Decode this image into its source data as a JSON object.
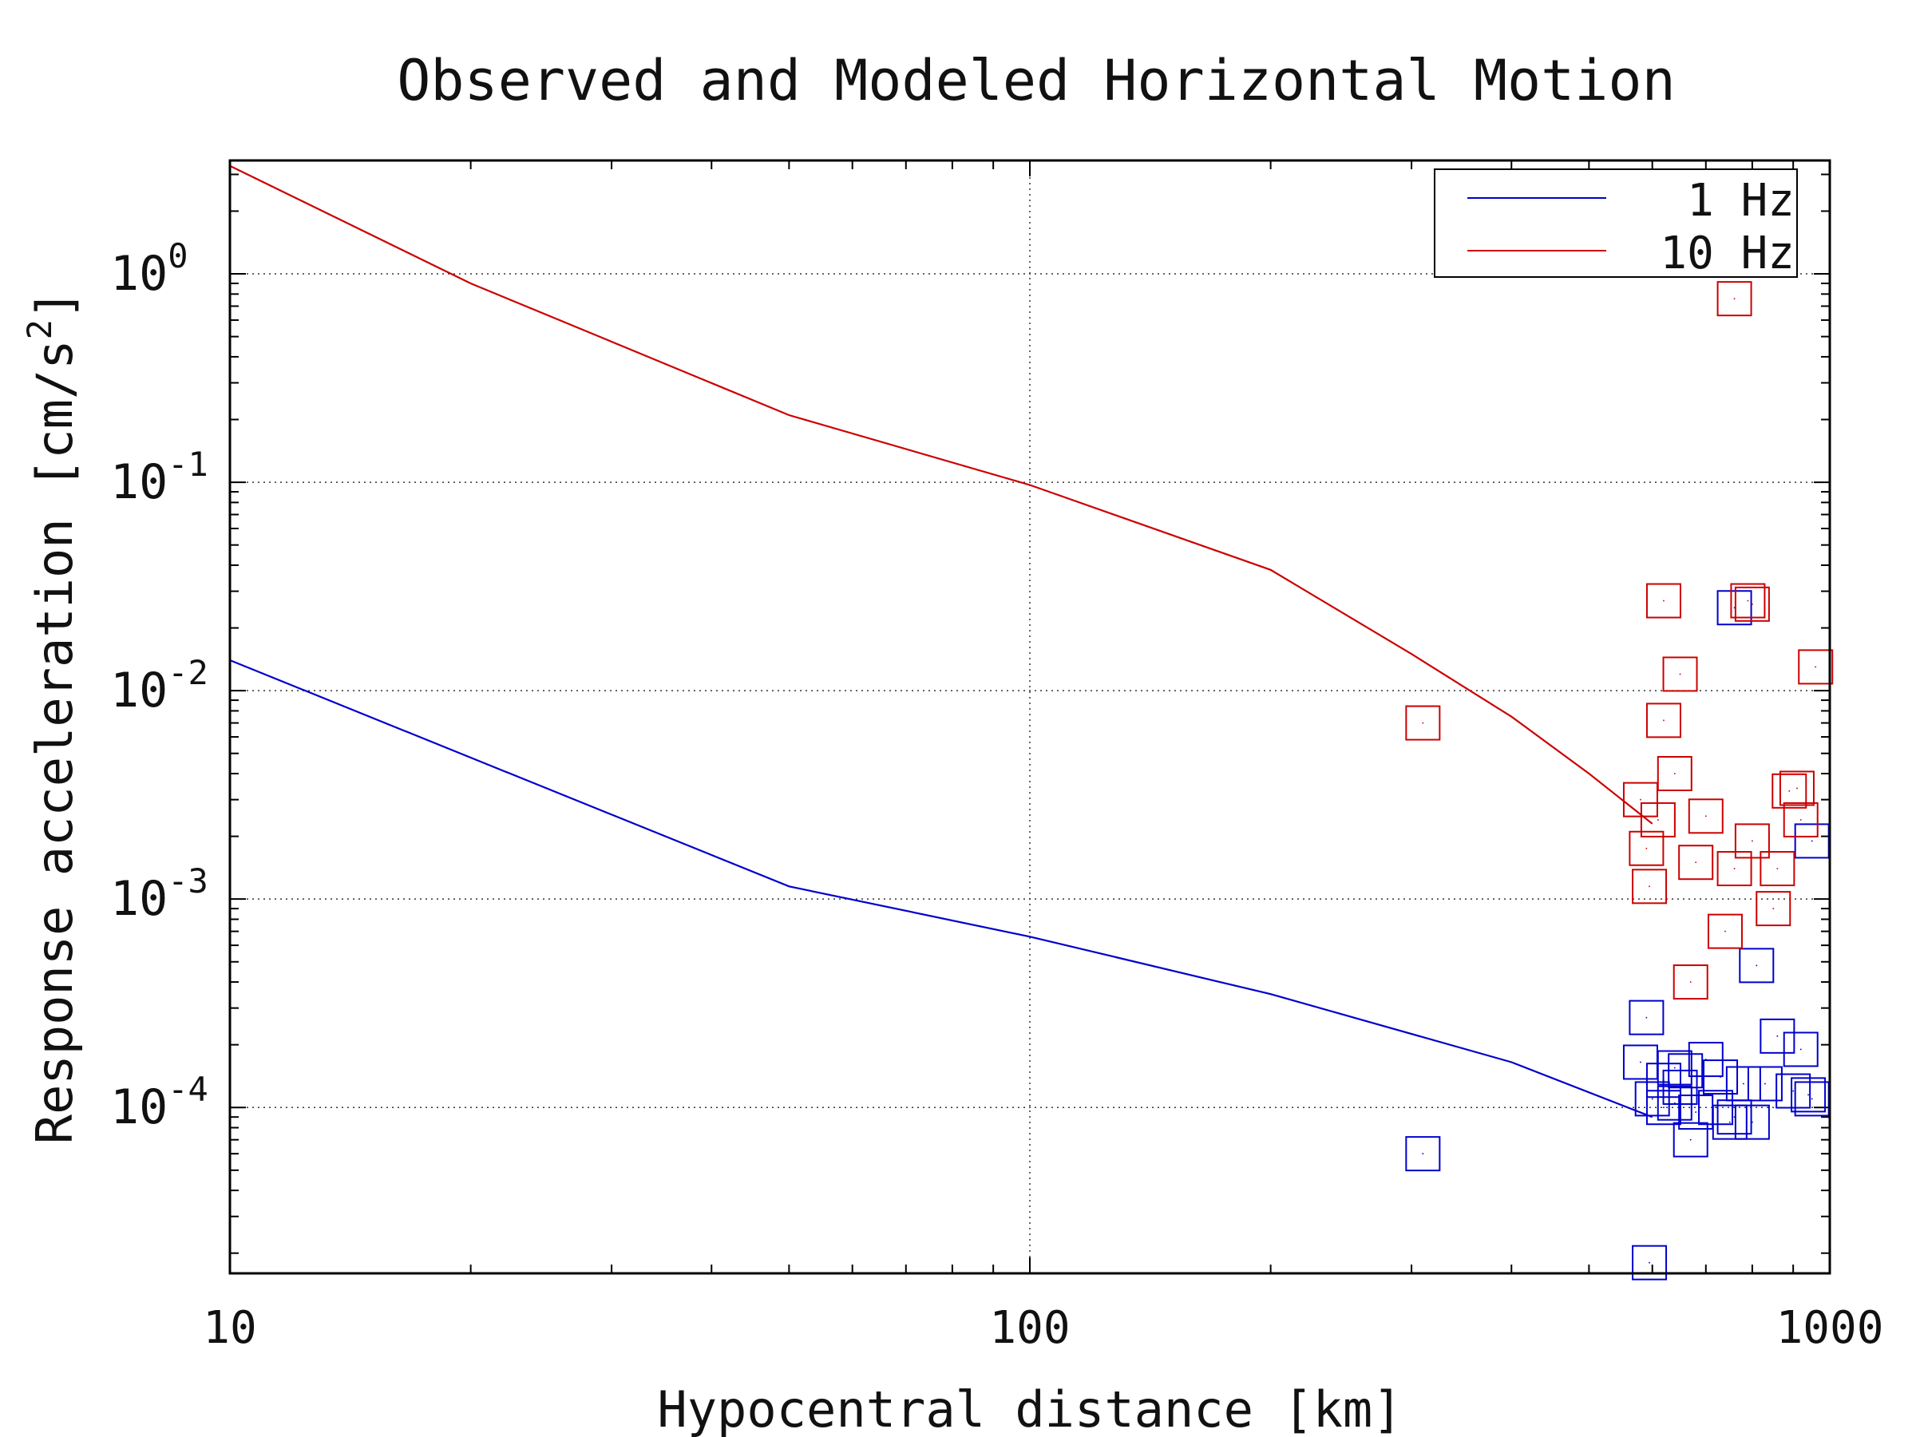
{
  "chart_data": {
    "type": "scatter",
    "title": "Observed and Modeled Horizontal Motion",
    "xlabel": "Hypocentral distance [km]",
    "ylabel": {
      "main": "Response acceleration [cm/s",
      "sup": "2",
      "close": "]"
    },
    "x_scale": "log",
    "y_scale": "log",
    "xlim": [
      10,
      1000
    ],
    "ylim": [
      1.6e-05,
      3.5
    ],
    "x_ticks": [
      {
        "value": 10,
        "label": "10"
      },
      {
        "value": 100,
        "label": "100"
      },
      {
        "value": 1000,
        "label": "1000"
      }
    ],
    "y_ticks": [
      {
        "value": 1,
        "base": "10",
        "exp": "0"
      },
      {
        "value": 0.1,
        "base": "10",
        "exp": "-1"
      },
      {
        "value": 0.01,
        "base": "10",
        "exp": "-2"
      },
      {
        "value": 0.001,
        "base": "10",
        "exp": "-3"
      },
      {
        "value": 0.0001,
        "base": "10",
        "exp": "-4"
      }
    ],
    "grid": "dotted, major decades",
    "legend_position": "top-right",
    "series": [
      {
        "name": "1 Hz",
        "color": "#0000cc",
        "line": [
          [
            10,
            0.014
          ],
          [
            50,
            0.00115
          ],
          [
            100,
            0.00066
          ],
          [
            200,
            0.00035
          ],
          [
            400,
            0.000165
          ],
          [
            600,
            9e-05
          ]
        ],
        "points": [
          [
            310,
            6e-05
          ],
          [
            595,
            1.8e-05
          ],
          [
            760,
            0.025
          ],
          [
            950,
            0.0019
          ],
          [
            810,
            0.00048
          ],
          [
            590,
            0.00027
          ],
          [
            860,
            0.00022
          ],
          [
            920,
            0.00019
          ],
          [
            580,
            0.000165
          ],
          [
            640,
            0.000155
          ],
          [
            660,
            0.00015
          ],
          [
            700,
            0.00017
          ],
          [
            620,
            0.000135
          ],
          [
            650,
            0.000125
          ],
          [
            730,
            0.00014
          ],
          [
            780,
            0.00013
          ],
          [
            830,
            0.00013
          ],
          [
            900,
            0.00012
          ],
          [
            940,
            0.000115
          ],
          [
            950,
            0.00011
          ],
          [
            600,
            0.00011
          ],
          [
            640,
            0.000105
          ],
          [
            620,
            0.0001
          ],
          [
            680,
            9.5e-05
          ],
          [
            720,
            0.0001
          ],
          [
            760,
            9e-05
          ],
          [
            800,
            8.5e-05
          ],
          [
            670,
            7e-05
          ],
          [
            750,
            8.5e-05
          ]
        ]
      },
      {
        "name": "10 Hz",
        "color": "#cc0000",
        "line": [
          [
            10,
            3.3
          ],
          [
            20,
            0.9
          ],
          [
            50,
            0.21
          ],
          [
            100,
            0.097
          ],
          [
            200,
            0.038
          ],
          [
            300,
            0.015
          ],
          [
            400,
            0.0075
          ],
          [
            500,
            0.004
          ],
          [
            600,
            0.0023
          ]
        ],
        "points": [
          [
            760,
            0.76
          ],
          [
            620,
            0.027
          ],
          [
            790,
            0.027
          ],
          [
            800,
            0.026
          ],
          [
            960,
            0.013
          ],
          [
            650,
            0.012
          ],
          [
            310,
            0.007
          ],
          [
            620,
            0.0072
          ],
          [
            640,
            0.004
          ],
          [
            580,
            0.003
          ],
          [
            610,
            0.0024
          ],
          [
            700,
            0.0025
          ],
          [
            890,
            0.0033
          ],
          [
            910,
            0.0034
          ],
          [
            920,
            0.0024
          ],
          [
            800,
            0.0019
          ],
          [
            590,
            0.00175
          ],
          [
            680,
            0.0015
          ],
          [
            760,
            0.0014
          ],
          [
            860,
            0.0014
          ],
          [
            595,
            0.00115
          ],
          [
            850,
            0.0009
          ],
          [
            740,
            0.0007
          ],
          [
            670,
            0.0004
          ]
        ]
      }
    ]
  }
}
